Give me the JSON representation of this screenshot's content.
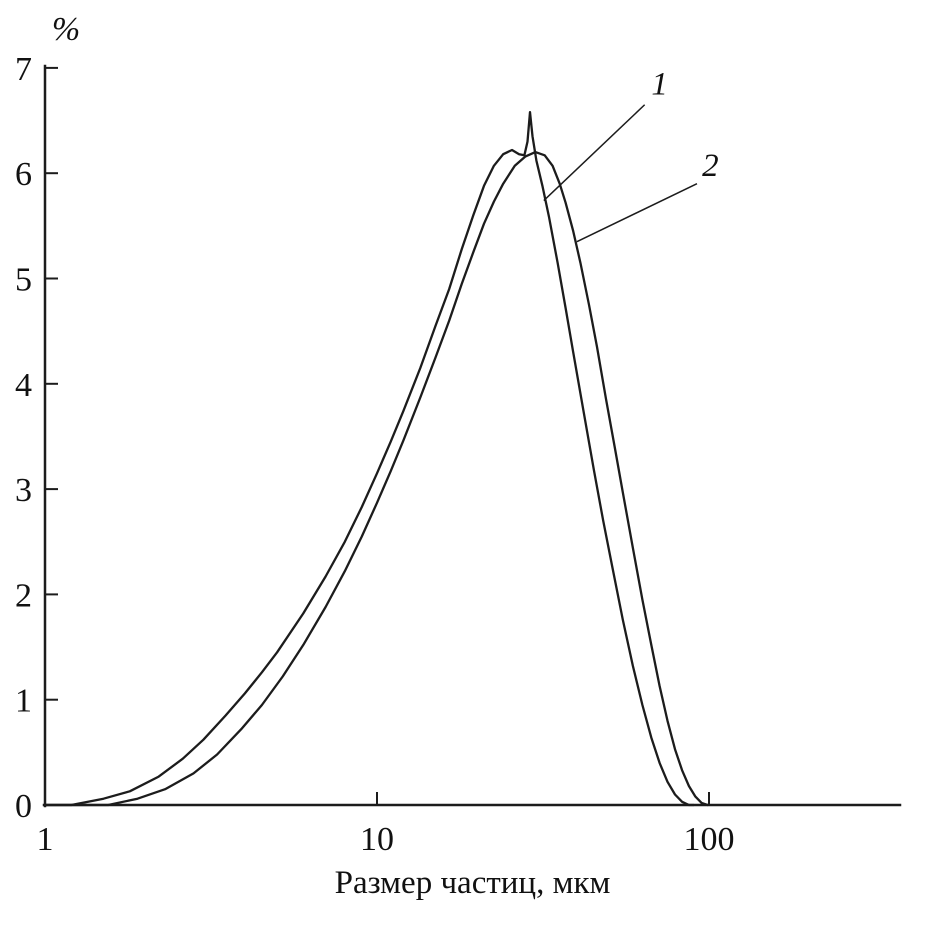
{
  "figure": {
    "description": "Particle size distribution curves (two samples), log x-axis"
  },
  "chart_data": {
    "type": "line",
    "title": "",
    "xlabel": "Размер частиц, мкм",
    "ylabel": "%",
    "x_scale": "log",
    "xlim": [
      1,
      380
    ],
    "ylim": [
      0,
      7
    ],
    "x_ticks": [
      "1",
      "10",
      "100"
    ],
    "y_ticks": [
      "0",
      "1",
      "2",
      "3",
      "4",
      "5",
      "6",
      "7"
    ],
    "grid": false,
    "legend": "none — curves labeled 1 and 2 with leader lines",
    "line_color": "#1c1c1c",
    "series": [
      {
        "name": "1",
        "points": [
          [
            1,
            0
          ],
          [
            1.2,
            0
          ],
          [
            1.5,
            0.06
          ],
          [
            1.8,
            0.13
          ],
          [
            2.2,
            0.27
          ],
          [
            2.6,
            0.44
          ],
          [
            3,
            0.62
          ],
          [
            3.5,
            0.85
          ],
          [
            4,
            1.06
          ],
          [
            4.5,
            1.26
          ],
          [
            5,
            1.45
          ],
          [
            6,
            1.82
          ],
          [
            7,
            2.17
          ],
          [
            8,
            2.5
          ],
          [
            9,
            2.83
          ],
          [
            10,
            3.15
          ],
          [
            11,
            3.45
          ],
          [
            12,
            3.74
          ],
          [
            13.5,
            4.15
          ],
          [
            15,
            4.55
          ],
          [
            16.5,
            4.9
          ],
          [
            18,
            5.28
          ],
          [
            19.5,
            5.6
          ],
          [
            21,
            5.88
          ],
          [
            22.5,
            6.07
          ],
          [
            24,
            6.18
          ],
          [
            25.5,
            6.22
          ],
          [
            26.8,
            6.18
          ],
          [
            27.8,
            6.17
          ],
          [
            28.4,
            6.3
          ],
          [
            28.9,
            6.58
          ],
          [
            29.4,
            6.35
          ],
          [
            30.2,
            6.12
          ],
          [
            31.5,
            5.88
          ],
          [
            33,
            5.58
          ],
          [
            35,
            5.15
          ],
          [
            37,
            4.72
          ],
          [
            39,
            4.3
          ],
          [
            42,
            3.72
          ],
          [
            45,
            3.18
          ],
          [
            48,
            2.7
          ],
          [
            51,
            2.28
          ],
          [
            55,
            1.76
          ],
          [
            59,
            1.32
          ],
          [
            63,
            0.95
          ],
          [
            67,
            0.64
          ],
          [
            71,
            0.4
          ],
          [
            75,
            0.22
          ],
          [
            79,
            0.1
          ],
          [
            83,
            0.03
          ],
          [
            87,
            0
          ],
          [
            90,
            0
          ]
        ]
      },
      {
        "name": "2",
        "points": [
          [
            1,
            0
          ],
          [
            1.55,
            0
          ],
          [
            1.9,
            0.06
          ],
          [
            2.3,
            0.15
          ],
          [
            2.8,
            0.3
          ],
          [
            3.3,
            0.48
          ],
          [
            3.9,
            0.72
          ],
          [
            4.5,
            0.95
          ],
          [
            5.2,
            1.22
          ],
          [
            6,
            1.52
          ],
          [
            7,
            1.88
          ],
          [
            8,
            2.22
          ],
          [
            9,
            2.55
          ],
          [
            10,
            2.87
          ],
          [
            11,
            3.17
          ],
          [
            12,
            3.46
          ],
          [
            13.5,
            3.87
          ],
          [
            15,
            4.25
          ],
          [
            16.5,
            4.6
          ],
          [
            18,
            4.95
          ],
          [
            19.5,
            5.25
          ],
          [
            21,
            5.52
          ],
          [
            22.5,
            5.73
          ],
          [
            24,
            5.9
          ],
          [
            26,
            6.07
          ],
          [
            28,
            6.16
          ],
          [
            30,
            6.2
          ],
          [
            32,
            6.17
          ],
          [
            33.8,
            6.07
          ],
          [
            35.5,
            5.9
          ],
          [
            37,
            5.72
          ],
          [
            39,
            5.45
          ],
          [
            41,
            5.15
          ],
          [
            43.5,
            4.75
          ],
          [
            46,
            4.35
          ],
          [
            49,
            3.85
          ],
          [
            52,
            3.4
          ],
          [
            55,
            2.97
          ],
          [
            59,
            2.44
          ],
          [
            63,
            1.95
          ],
          [
            67,
            1.52
          ],
          [
            71,
            1.13
          ],
          [
            75,
            0.8
          ],
          [
            79,
            0.53
          ],
          [
            83,
            0.33
          ],
          [
            87,
            0.18
          ],
          [
            91,
            0.08
          ],
          [
            95,
            0.02
          ],
          [
            99,
            0
          ]
        ]
      }
    ],
    "annotations": [
      {
        "label": "1",
        "label_xy": [
          71,
          6.85
        ],
        "line_from": [
          64,
          6.65
        ],
        "line_to": [
          31.8,
          5.74
        ]
      },
      {
        "label": "2",
        "label_xy": [
          101,
          6.08
        ],
        "line_from": [
          92,
          5.9
        ],
        "line_to": [
          40,
          5.35
        ]
      }
    ]
  }
}
